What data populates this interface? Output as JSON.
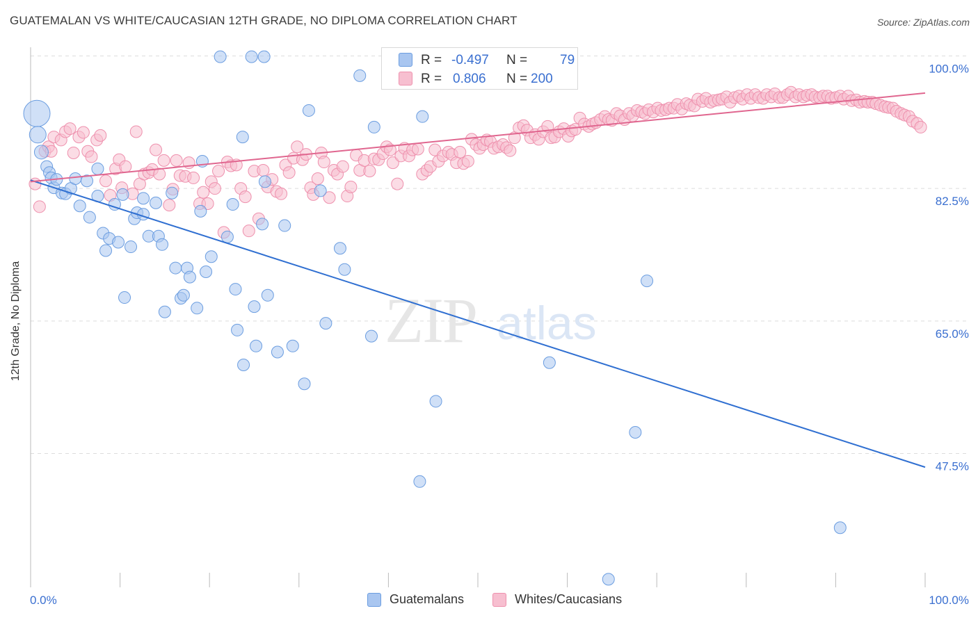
{
  "header": {
    "title": "GUATEMALAN VS WHITE/CAUCASIAN 12TH GRADE, NO DIPLOMA CORRELATION CHART",
    "source": "Source: ZipAtlas.com"
  },
  "watermark": {
    "zip": "ZIP",
    "atlas": "atlas"
  },
  "legend": {
    "rows": [
      {
        "r_label": "R =",
        "r_value": "-0.497",
        "n_label": "N =",
        "n_value": "79",
        "color": "#a9c6f0",
        "border": "#6b9de0"
      },
      {
        "r_label": "R =",
        "r_value": "0.806",
        "n_label": "N =",
        "n_value": "200",
        "color": "#f7bfd0",
        "border": "#ee90ad"
      }
    ]
  },
  "bottom_legend": [
    "Guatemalans",
    "Whites/Caucasians"
  ],
  "colors": {
    "blue_fill": "#a9c6f0",
    "blue_stroke": "#6b9de0",
    "blue_line": "#2f6fd1",
    "pink_fill": "#f7bfd0",
    "pink_stroke": "#ee90ad",
    "pink_line": "#e0668f",
    "grid": "#dcdcdc",
    "tick_label": "#3a6fd0"
  },
  "chart_data": {
    "type": "scatter",
    "title": "GUATEMALAN VS WHITE/CAUCASIAN 12TH GRADE, NO DIPLOMA CORRELATION CHART",
    "xlabel": "",
    "ylabel": "12th Grade, No Diploma",
    "x_tick_labels": [
      "0.0%",
      "100.0%"
    ],
    "y_tick_labels": [
      "100.0%",
      "82.5%",
      "65.0%",
      "47.5%"
    ],
    "y_ticks": [
      100.0,
      82.5,
      65.0,
      47.5
    ],
    "xlim": [
      0,
      100
    ],
    "ylim": [
      29.5,
      102.5
    ],
    "grid": true,
    "legend_position": "top-center",
    "series": [
      {
        "name": "Guatemalans",
        "r": -0.497,
        "n": 79,
        "trend": {
          "x": [
            0,
            100
          ],
          "y": [
            83.6,
            45.7
          ]
        },
        "points": [
          [
            0.7,
            92.4
          ],
          [
            0.8,
            89.6
          ],
          [
            1.2,
            87.3
          ],
          [
            1.8,
            85.4
          ],
          [
            2.1,
            84.6
          ],
          [
            2.3,
            83.9
          ],
          [
            2.6,
            82.6
          ],
          [
            2.9,
            83.7
          ],
          [
            3.5,
            81.9
          ],
          [
            3.9,
            81.8
          ],
          [
            4.5,
            82.5
          ],
          [
            5.0,
            83.8
          ],
          [
            5.5,
            80.2
          ],
          [
            6.3,
            83.5
          ],
          [
            6.6,
            78.7
          ],
          [
            7.5,
            81.5
          ],
          [
            7.5,
            85.1
          ],
          [
            8.1,
            76.6
          ],
          [
            8.4,
            74.3
          ],
          [
            8.8,
            75.9
          ],
          [
            9.4,
            80.4
          ],
          [
            9.8,
            75.4
          ],
          [
            10.3,
            81.7
          ],
          [
            10.5,
            68.1
          ],
          [
            11.2,
            74.8
          ],
          [
            11.6,
            78.5
          ],
          [
            11.9,
            79.3
          ],
          [
            12.6,
            81.2
          ],
          [
            12.6,
            79.1
          ],
          [
            13.2,
            76.2
          ],
          [
            14.0,
            80.6
          ],
          [
            14.3,
            76.2
          ],
          [
            14.7,
            75.1
          ],
          [
            15.0,
            66.2
          ],
          [
            15.8,
            81.9
          ],
          [
            16.2,
            72.0
          ],
          [
            16.8,
            68.0
          ],
          [
            17.1,
            68.4
          ],
          [
            17.5,
            72.0
          ],
          [
            17.8,
            70.8
          ],
          [
            18.6,
            66.7
          ],
          [
            19.0,
            79.5
          ],
          [
            19.2,
            86.1
          ],
          [
            19.6,
            71.5
          ],
          [
            20.2,
            73.5
          ],
          [
            21.2,
            99.9
          ],
          [
            22.0,
            76.1
          ],
          [
            22.6,
            80.4
          ],
          [
            22.9,
            69.2
          ],
          [
            23.1,
            63.8
          ],
          [
            23.7,
            89.3
          ],
          [
            23.8,
            59.2
          ],
          [
            24.7,
            99.9
          ],
          [
            25.0,
            66.9
          ],
          [
            25.2,
            61.7
          ],
          [
            25.9,
            77.8
          ],
          [
            26.2,
            83.4
          ],
          [
            26.1,
            99.9
          ],
          [
            26.5,
            68.4
          ],
          [
            27.6,
            60.9
          ],
          [
            28.4,
            77.6
          ],
          [
            29.3,
            61.7
          ],
          [
            30.6,
            56.7
          ],
          [
            31.1,
            92.8
          ],
          [
            32.4,
            82.2
          ],
          [
            33.0,
            64.7
          ],
          [
            34.6,
            74.6
          ],
          [
            35.1,
            71.8
          ],
          [
            36.8,
            97.4
          ],
          [
            38.1,
            63.0
          ],
          [
            38.4,
            90.6
          ],
          [
            43.5,
            43.8
          ],
          [
            43.8,
            92.0
          ],
          [
            45.3,
            54.4
          ],
          [
            58.0,
            59.5
          ],
          [
            64.6,
            30.9
          ],
          [
            67.6,
            50.3
          ],
          [
            68.9,
            70.3
          ],
          [
            90.5,
            37.7
          ]
        ]
      },
      {
        "name": "Whites/Caucasians",
        "r": 0.806,
        "n": 200,
        "trend": {
          "x": [
            0,
            100
          ],
          "y": [
            83.4,
            95.1
          ]
        },
        "points": [
          [
            0.5,
            83.1
          ],
          [
            1.0,
            80.1
          ],
          [
            1.6,
            87.4
          ],
          [
            2.0,
            88.0
          ],
          [
            2.3,
            87.4
          ],
          [
            2.6,
            89.3
          ],
          [
            3.4,
            88.9
          ],
          [
            3.9,
            90.0
          ],
          [
            4.4,
            90.4
          ],
          [
            4.8,
            87.2
          ],
          [
            5.4,
            89.3
          ],
          [
            5.9,
            89.9
          ],
          [
            6.4,
            87.4
          ],
          [
            6.8,
            86.7
          ],
          [
            7.4,
            88.9
          ],
          [
            7.8,
            89.5
          ],
          [
            8.4,
            83.5
          ],
          [
            8.9,
            81.6
          ],
          [
            9.5,
            85.1
          ],
          [
            9.9,
            86.3
          ],
          [
            10.2,
            82.6
          ],
          [
            10.6,
            85.4
          ],
          [
            11.4,
            81.8
          ],
          [
            11.8,
            90.0
          ],
          [
            12.2,
            83.1
          ],
          [
            12.7,
            84.4
          ],
          [
            13.2,
            84.6
          ],
          [
            13.6,
            85.0
          ],
          [
            14.0,
            87.6
          ],
          [
            14.4,
            84.4
          ],
          [
            14.9,
            86.2
          ],
          [
            15.5,
            80.3
          ],
          [
            15.9,
            82.4
          ],
          [
            16.3,
            86.2
          ],
          [
            16.7,
            84.2
          ],
          [
            17.3,
            84.1
          ],
          [
            17.7,
            85.9
          ],
          [
            18.2,
            83.9
          ],
          [
            18.9,
            80.5
          ],
          [
            19.3,
            82.0
          ],
          [
            19.8,
            80.5
          ],
          [
            20.2,
            83.4
          ],
          [
            20.6,
            82.5
          ],
          [
            21.0,
            84.8
          ],
          [
            21.6,
            76.7
          ],
          [
            22.0,
            86.0
          ],
          [
            22.4,
            85.5
          ],
          [
            23.0,
            85.6
          ],
          [
            23.5,
            82.5
          ],
          [
            24.0,
            81.4
          ],
          [
            24.4,
            76.9
          ],
          [
            25.0,
            84.8
          ],
          [
            25.5,
            78.5
          ],
          [
            26.0,
            84.9
          ],
          [
            26.5,
            82.7
          ],
          [
            27.0,
            83.7
          ],
          [
            27.5,
            82.1
          ],
          [
            28.0,
            81.8
          ],
          [
            28.5,
            85.6
          ],
          [
            28.9,
            84.6
          ],
          [
            29.4,
            86.5
          ],
          [
            29.8,
            88.0
          ],
          [
            30.4,
            86.3
          ],
          [
            30.8,
            87.0
          ],
          [
            31.3,
            82.6
          ],
          [
            31.6,
            81.7
          ],
          [
            32.1,
            83.8
          ],
          [
            32.5,
            87.2
          ],
          [
            32.8,
            86.0
          ],
          [
            33.4,
            81.3
          ],
          [
            33.9,
            84.9
          ],
          [
            34.3,
            84.4
          ],
          [
            34.9,
            85.4
          ],
          [
            35.4,
            81.5
          ],
          [
            35.8,
            82.7
          ],
          [
            36.4,
            86.9
          ],
          [
            36.8,
            84.9
          ],
          [
            37.3,
            86.2
          ],
          [
            37.9,
            84.8
          ],
          [
            38.4,
            86.4
          ],
          [
            38.9,
            86.3
          ],
          [
            39.4,
            87.1
          ],
          [
            39.8,
            88.0
          ],
          [
            40.2,
            87.6
          ],
          [
            40.5,
            85.9
          ],
          [
            41.0,
            83.1
          ],
          [
            41.4,
            86.8
          ],
          [
            41.8,
            87.8
          ],
          [
            42.3,
            86.8
          ],
          [
            42.7,
            87.6
          ],
          [
            43.3,
            87.7
          ],
          [
            43.8,
            84.4
          ],
          [
            44.3,
            84.9
          ],
          [
            44.7,
            85.4
          ],
          [
            45.2,
            87.6
          ],
          [
            45.6,
            86.1
          ],
          [
            46.1,
            86.8
          ],
          [
            46.7,
            87.3
          ],
          [
            47.1,
            87.0
          ],
          [
            47.6,
            85.9
          ],
          [
            48.0,
            87.3
          ],
          [
            48.4,
            85.8
          ],
          [
            48.9,
            86.1
          ],
          [
            49.3,
            89.0
          ],
          [
            49.8,
            88.3
          ],
          [
            50.2,
            87.8
          ],
          [
            50.6,
            88.3
          ],
          [
            51.0,
            88.9
          ],
          [
            51.4,
            88.7
          ],
          [
            51.8,
            87.8
          ],
          [
            52.3,
            88.0
          ],
          [
            52.8,
            88.3
          ],
          [
            53.2,
            87.9
          ],
          [
            53.6,
            87.5
          ],
          [
            54.1,
            89.2
          ],
          [
            54.6,
            90.5
          ],
          [
            55.1,
            90.8
          ],
          [
            55.5,
            90.2
          ],
          [
            55.9,
            89.2
          ],
          [
            56.4,
            89.6
          ],
          [
            56.8,
            89.0
          ],
          [
            57.3,
            90.0
          ],
          [
            57.8,
            90.7
          ],
          [
            58.2,
            89.2
          ],
          [
            58.6,
            89.3
          ],
          [
            59.1,
            90.0
          ],
          [
            59.6,
            90.4
          ],
          [
            60.1,
            89.4
          ],
          [
            60.5,
            90.1
          ],
          [
            60.9,
            90.3
          ],
          [
            61.4,
            91.8
          ],
          [
            61.9,
            91.0
          ],
          [
            62.4,
            90.7
          ],
          [
            62.8,
            91.0
          ],
          [
            63.2,
            91.2
          ],
          [
            63.7,
            91.6
          ],
          [
            64.2,
            92.0
          ],
          [
            64.6,
            91.6
          ],
          [
            65.0,
            91.5
          ],
          [
            65.5,
            92.4
          ],
          [
            65.9,
            92.1
          ],
          [
            66.4,
            91.6
          ],
          [
            66.9,
            92.4
          ],
          [
            67.3,
            92.1
          ],
          [
            67.8,
            92.8
          ],
          [
            68.3,
            92.6
          ],
          [
            68.7,
            92.4
          ],
          [
            69.1,
            92.9
          ],
          [
            69.6,
            92.6
          ],
          [
            70.1,
            93.1
          ],
          [
            70.5,
            92.8
          ],
          [
            71.0,
            92.9
          ],
          [
            71.4,
            93.1
          ],
          [
            71.9,
            93.1
          ],
          [
            72.3,
            93.6
          ],
          [
            72.8,
            93.0
          ],
          [
            73.3,
            93.7
          ],
          [
            73.7,
            93.5
          ],
          [
            74.2,
            93.4
          ],
          [
            74.6,
            94.3
          ],
          [
            75.1,
            94.0
          ],
          [
            75.5,
            94.4
          ],
          [
            76.0,
            93.9
          ],
          [
            76.4,
            94.1
          ],
          [
            76.9,
            94.2
          ],
          [
            77.3,
            94.3
          ],
          [
            77.8,
            94.6
          ],
          [
            78.2,
            93.9
          ],
          [
            78.7,
            94.5
          ],
          [
            79.2,
            94.7
          ],
          [
            79.6,
            94.3
          ],
          [
            80.1,
            94.9
          ],
          [
            80.5,
            94.4
          ],
          [
            81.0,
            94.9
          ],
          [
            81.4,
            94.5
          ],
          [
            81.9,
            94.4
          ],
          [
            82.3,
            94.9
          ],
          [
            82.8,
            94.6
          ],
          [
            83.2,
            95.0
          ],
          [
            83.7,
            94.5
          ],
          [
            84.1,
            94.5
          ],
          [
            84.6,
            94.9
          ],
          [
            85.0,
            95.2
          ],
          [
            85.5,
            94.6
          ],
          [
            85.9,
            94.9
          ],
          [
            86.4,
            94.6
          ],
          [
            86.8,
            94.8
          ],
          [
            87.3,
            94.9
          ],
          [
            87.7,
            94.6
          ],
          [
            88.2,
            94.5
          ],
          [
            88.6,
            94.7
          ],
          [
            89.1,
            94.7
          ],
          [
            89.5,
            94.4
          ],
          [
            90.0,
            94.5
          ],
          [
            90.5,
            94.7
          ],
          [
            90.9,
            94.3
          ],
          [
            91.4,
            94.7
          ],
          [
            91.8,
            94.1
          ],
          [
            92.3,
            94.2
          ],
          [
            92.7,
            93.9
          ],
          [
            93.2,
            94.0
          ],
          [
            93.6,
            93.9
          ],
          [
            94.1,
            93.9
          ],
          [
            94.5,
            93.7
          ],
          [
            95.0,
            93.5
          ],
          [
            95.5,
            93.3
          ],
          [
            95.9,
            93.2
          ],
          [
            96.4,
            93.1
          ],
          [
            96.8,
            92.7
          ],
          [
            97.3,
            92.4
          ],
          [
            97.7,
            92.2
          ],
          [
            98.2,
            92.0
          ],
          [
            98.6,
            91.4
          ],
          [
            99.1,
            91.1
          ],
          [
            99.5,
            90.6
          ]
        ]
      }
    ]
  }
}
